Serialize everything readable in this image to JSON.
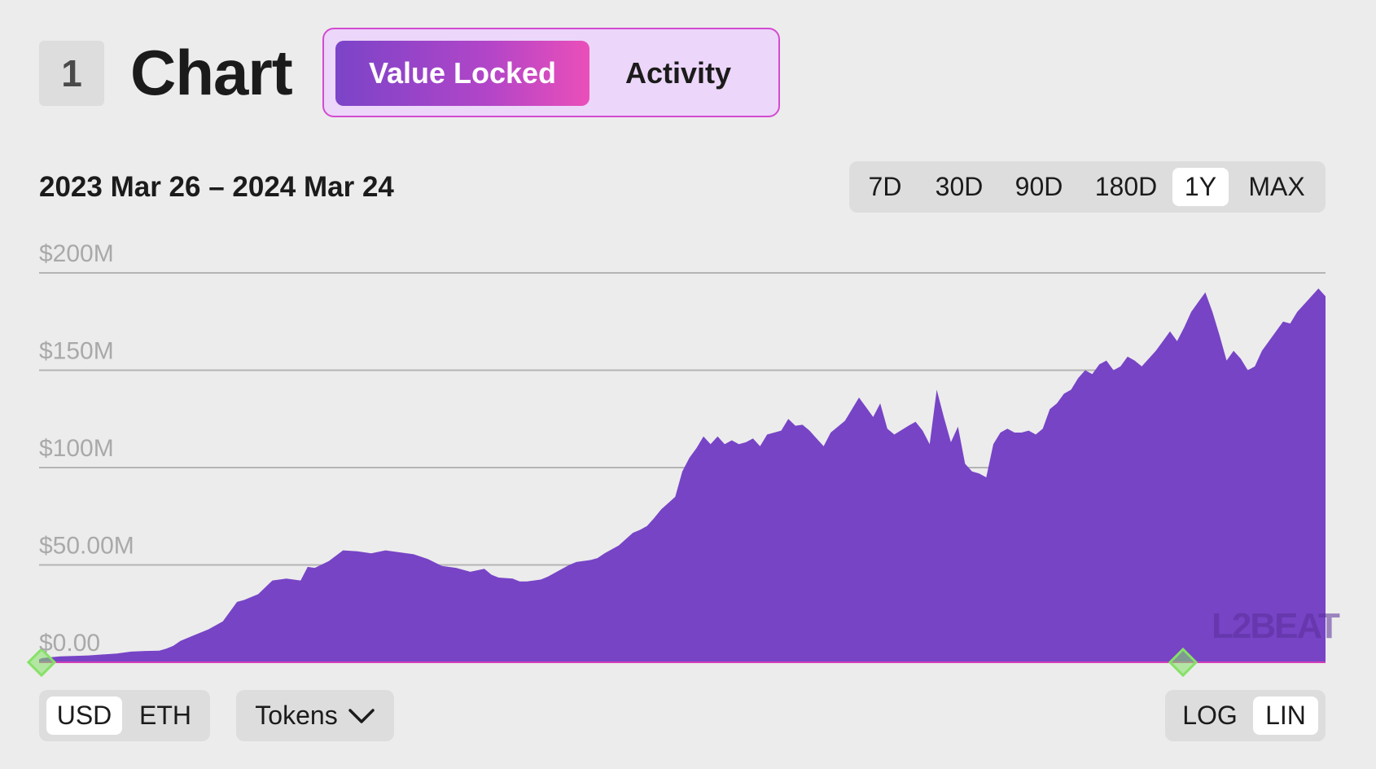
{
  "header": {
    "section_number": "1",
    "title": "Chart",
    "tabs": [
      "Value Locked",
      "Activity"
    ]
  },
  "range": {
    "label": "2023 Mar 26 – 2024 Mar 24",
    "options": [
      "7D",
      "30D",
      "90D",
      "180D",
      "1Y",
      "MAX"
    ],
    "selected": "1Y"
  },
  "controls": {
    "currency": [
      "USD",
      "ETH"
    ],
    "currency_selected": "USD",
    "tokens_label": "Tokens",
    "scale": [
      "LOG",
      "LIN"
    ],
    "scale_selected": "LIN"
  },
  "logo_text": "L2BEAT",
  "colors": {
    "area": "#7744c6",
    "baseline": "#d23fb8",
    "marker": "#86e167",
    "grid": "#b5b5b5"
  },
  "chart_data": {
    "type": "area",
    "title": "Value Locked",
    "xlabel": "",
    "ylabel": "",
    "x_range": [
      "2023-03-26",
      "2024-03-24"
    ],
    "ylim": [
      0,
      200000000
    ],
    "ytick_labels": [
      "$200M",
      "$150M",
      "$100M",
      "$50.00M",
      "$0.00"
    ],
    "ytick_values": [
      200000000,
      150000000,
      100000000,
      50000000,
      0
    ],
    "series": [
      {
        "name": "Value Locked (USD)",
        "x": [
          0,
          1,
          6,
          14,
          22,
          26,
          30,
          34,
          36,
          38,
          40,
          44,
          48,
          52,
          54,
          56,
          58,
          62,
          66,
          70,
          74,
          76,
          78,
          82,
          86,
          90,
          94,
          98,
          102,
          106,
          110,
          114,
          118,
          122,
          126,
          128,
          130,
          134,
          136,
          138,
          140,
          142,
          144,
          148,
          150,
          152,
          156,
          158,
          160,
          164,
          168,
          170,
          172,
          174,
          176,
          180,
          182,
          184,
          186,
          188,
          190,
          192,
          194,
          196,
          198,
          200,
          202,
          204,
          206,
          208,
          210,
          212,
          214,
          216,
          218,
          220,
          222,
          224,
          228,
          230,
          232,
          234,
          236,
          238,
          240,
          242,
          246,
          248,
          250,
          252,
          254,
          256,
          258,
          260,
          262,
          264,
          266,
          268,
          270,
          272,
          274,
          276,
          278,
          280,
          282,
          284,
          286,
          288,
          290,
          292,
          294,
          296,
          298,
          300,
          302,
          304,
          306,
          308,
          310,
          312,
          316,
          318,
          320,
          322,
          324,
          326,
          328,
          330,
          332,
          334,
          336,
          338,
          340,
          342,
          344,
          346,
          348,
          350,
          352,
          354,
          356,
          358,
          360,
          362,
          364
        ],
        "values": [
          1.5,
          2.2,
          3.0,
          3.5,
          4.5,
          5.5,
          5.8,
          6.0,
          7.0,
          8.5,
          11.0,
          14.0,
          17.0,
          21.0,
          26.0,
          31.0,
          32.0,
          35.0,
          42.0,
          43.0,
          42.0,
          49.0,
          48.5,
          52.0,
          57.5,
          57.0,
          56.0,
          57.5,
          56.5,
          55.5,
          53.0,
          49.5,
          48.5,
          46.5,
          48.0,
          45.0,
          43.5,
          43.0,
          41.5,
          41.5,
          42.0,
          42.5,
          44.0,
          48.0,
          50.0,
          51.5,
          52.5,
          53.5,
          56.0,
          60.0,
          66.5,
          68.0,
          70.0,
          74.0,
          78.5,
          85.0,
          98.0,
          105.0,
          110.0,
          116.0,
          112.0,
          116.0,
          112.0,
          114.0,
          112.0,
          113.0,
          115.0,
          111.0,
          117.0,
          118.0,
          119.0,
          125.0,
          121.5,
          122.0,
          119.0,
          115.0,
          111.0,
          118.0,
          124.0,
          130.0,
          136.0,
          131.0,
          126.0,
          133.0,
          120.0,
          117.0,
          121.5,
          123.5,
          119.0,
          112.0,
          140.0,
          126.0,
          113.0,
          121.0,
          102.0,
          98.0,
          97.0,
          95.0,
          112.0,
          118.0,
          120.0,
          118.0,
          118.0,
          119.0,
          117.0,
          120.0,
          130.0,
          133.0,
          138.0,
          140.0,
          146.0,
          150.0,
          148.0,
          153.0,
          155.0,
          150.0,
          152.0,
          157.0,
          155.0,
          152.0,
          160.0,
          165.0,
          170.0,
          165.0,
          172.0,
          180.0,
          185.0,
          190.0,
          180.0,
          168.0,
          155.0,
          160.0,
          156.0,
          150.0,
          152.0,
          160.0,
          165.0,
          170.0,
          175.0,
          174.0,
          180.0,
          184.0,
          188.0,
          192.0,
          188.0
        ]
      }
    ],
    "markers": [
      "range-start",
      "range-end"
    ],
    "grid": true
  }
}
